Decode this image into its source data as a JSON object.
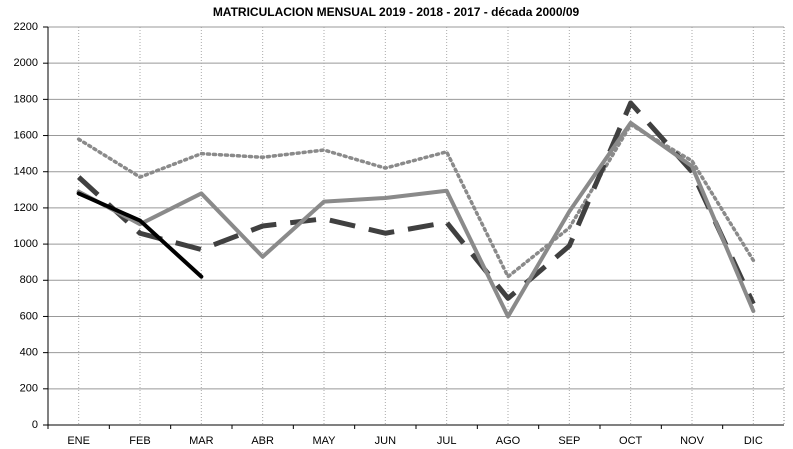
{
  "chart_data": {
    "type": "line",
    "title": "MATRICULACION MENSUAL  2019 - 2018 - 2017 - década 2000/09",
    "categories": [
      "ENE",
      "FEB",
      "MAR",
      "ABR",
      "MAY",
      "JUN",
      "JUL",
      "AGO",
      "SEP",
      "OCT",
      "NOV",
      "DIC"
    ],
    "series": [
      {
        "color": "#8a8a8a",
        "line_style": "dotted",
        "values": [
          1580,
          1370,
          1500,
          1480,
          1520,
          1420,
          1510,
          820,
          1090,
          1660,
          1460,
          910
        ]
      },
      {
        "color": "#404040",
        "line_style": "dashed",
        "values": [
          1370,
          1060,
          970,
          1100,
          1140,
          1060,
          1120,
          700,
          990,
          1780,
          1400,
          670
        ]
      },
      {
        "color": "#8a8a8a",
        "line_style": "solid",
        "values": [
          1290,
          1110,
          1280,
          930,
          1235,
          1255,
          1295,
          600,
          1180,
          1670,
          1430,
          630
        ]
      },
      {
        "color": "#000000",
        "line_style": "solid",
        "values": [
          1280,
          1130,
          820,
          null,
          null,
          null,
          null,
          null,
          null,
          null,
          null,
          null
        ]
      }
    ],
    "ylim": [
      0,
      2200
    ],
    "yticks": [
      0,
      200,
      400,
      600,
      800,
      1000,
      1200,
      1400,
      1600,
      1800,
      2000,
      2200
    ],
    "grid": true
  }
}
